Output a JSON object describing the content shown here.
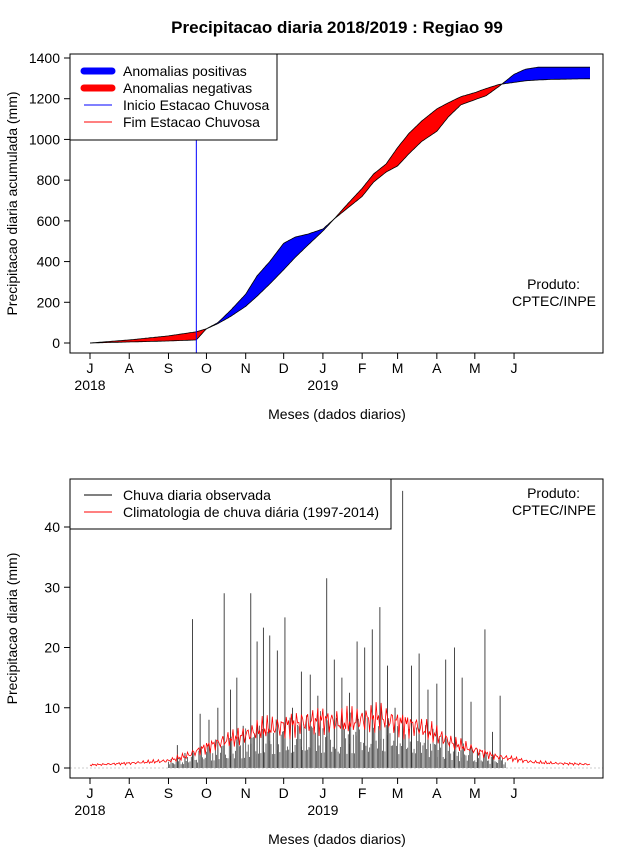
{
  "title": "Precipitacao diaria 2018/2019 : Regiao 99",
  "product_label": [
    "Produto:",
    "CPTEC/INPE"
  ],
  "month_ticks": [
    "J",
    "A",
    "S",
    "O",
    "N",
    "D",
    "J",
    "F",
    "M",
    "A",
    "M",
    "J"
  ],
  "year_labels": [
    "2018",
    "2019"
  ],
  "colors": {
    "positive": "#0000ff",
    "negative": "#ff0000",
    "onset": "#0000ff",
    "end": "#ff0000",
    "observed": "#000000",
    "climatology": "#ff0000"
  },
  "chart_data": [
    {
      "type": "area",
      "title": "Precipitacao diaria 2018/2019 : Regiao 99",
      "xlabel": "Meses (dados diarios)",
      "ylabel": "Precipitacao diaria acumulada (mm)",
      "ylim": [
        0,
        1400
      ],
      "yticks": [
        0,
        200,
        400,
        600,
        800,
        1000,
        1200,
        1400
      ],
      "x_range": [
        "2018-07-01",
        "2019-07-31"
      ],
      "legend_position": "top-left",
      "legend": [
        "Anomalias positivas",
        "Anomalias negativas",
        "Inicio Estacao Chuvosa",
        "Fim Estacao Chuvosa"
      ],
      "onset_date": "2018-09-23",
      "observed_accumulated": {
        "dates": [
          "2018-07-01",
          "2018-08-01",
          "2018-09-01",
          "2018-09-23",
          "2018-10-01",
          "2018-10-10",
          "2018-10-20",
          "2018-11-01",
          "2018-11-10",
          "2018-11-20",
          "2018-12-01",
          "2018-12-10",
          "2018-12-20",
          "2019-01-01",
          "2019-01-10",
          "2019-01-20",
          "2019-02-01",
          "2019-02-10",
          "2019-02-20",
          "2019-03-01",
          "2019-03-10",
          "2019-03-20",
          "2019-04-01",
          "2019-04-10",
          "2019-04-20",
          "2019-05-01",
          "2019-05-10",
          "2019-05-20",
          "2019-06-01",
          "2019-06-10",
          "2019-06-20",
          "2019-07-01",
          "2019-07-31"
        ],
        "values": [
          0,
          5,
          10,
          15,
          70,
          100,
          160,
          240,
          330,
          400,
          490,
          520,
          535,
          560,
          610,
          660,
          720,
          790,
          840,
          870,
          930,
          990,
          1040,
          1110,
          1170,
          1195,
          1215,
          1260,
          1320,
          1345,
          1355,
          1355,
          1355
        ]
      },
      "climatology_accumulated": {
        "dates": [
          "2018-07-01",
          "2018-08-01",
          "2018-09-01",
          "2018-09-23",
          "2018-10-01",
          "2018-10-10",
          "2018-10-20",
          "2018-11-01",
          "2018-11-10",
          "2018-11-20",
          "2018-12-01",
          "2018-12-10",
          "2018-12-20",
          "2019-01-01",
          "2019-01-10",
          "2019-01-20",
          "2019-02-01",
          "2019-02-10",
          "2019-02-20",
          "2019-03-01",
          "2019-03-10",
          "2019-03-20",
          "2019-04-01",
          "2019-04-10",
          "2019-04-20",
          "2019-05-01",
          "2019-05-10",
          "2019-05-20",
          "2019-06-01",
          "2019-06-10",
          "2019-06-20",
          "2019-07-01",
          "2019-07-31"
        ],
        "values": [
          0,
          15,
          35,
          55,
          70,
          95,
          130,
          180,
          230,
          290,
          360,
          420,
          480,
          550,
          610,
          680,
          760,
          830,
          880,
          960,
          1030,
          1090,
          1150,
          1180,
          1210,
          1230,
          1250,
          1270,
          1280,
          1288,
          1292,
          1295,
          1298
        ]
      }
    },
    {
      "type": "line",
      "xlabel": "Meses (dados diarios)",
      "ylabel": "Precipitacao diaria (mm)",
      "ylim": [
        0,
        47
      ],
      "yticks": [
        0,
        10,
        20,
        30,
        40
      ],
      "x_range": [
        "2018-07-01",
        "2019-07-31"
      ],
      "legend_position": "top-left",
      "series": [
        {
          "name": "Chuva diaria observada",
          "style": "vertical bars",
          "dates": [
            "2018-09-08",
            "2018-09-14",
            "2018-09-20",
            "2018-09-26",
            "2018-10-03",
            "2018-10-10",
            "2018-10-15",
            "2018-10-20",
            "2018-10-25",
            "2018-10-30",
            "2018-11-05",
            "2018-11-10",
            "2018-11-15",
            "2018-11-20",
            "2018-11-26",
            "2018-12-02",
            "2018-12-08",
            "2018-12-15",
            "2018-12-22",
            "2018-12-28",
            "2019-01-04",
            "2019-01-10",
            "2019-01-16",
            "2019-01-22",
            "2019-01-28",
            "2019-02-03",
            "2019-02-09",
            "2019-02-15",
            "2019-02-21",
            "2019-02-27",
            "2019-03-05",
            "2019-03-12",
            "2019-03-18",
            "2019-03-25",
            "2019-04-01",
            "2019-04-08",
            "2019-04-15",
            "2019-04-21",
            "2019-04-28",
            "2019-05-03",
            "2019-05-09",
            "2019-05-15",
            "2019-05-21"
          ],
          "values": [
            3.8,
            2.5,
            24.7,
            9,
            8,
            10,
            29,
            13,
            15,
            7,
            29,
            21,
            23.3,
            22,
            19.5,
            25,
            10,
            16,
            15.5,
            12,
            31.5,
            18,
            15,
            12.5,
            21,
            20,
            23,
            26.7,
            17,
            10,
            46,
            17,
            19,
            13,
            14,
            18,
            20,
            15,
            11,
            3,
            23,
            6,
            12
          ]
        },
        {
          "name": "Climatologia de chuva diária (1997-2014)",
          "style": "line",
          "dates": [
            "2018-07-01",
            "2018-08-01",
            "2018-09-01",
            "2018-09-15",
            "2018-10-01",
            "2018-10-15",
            "2018-11-01",
            "2018-11-15",
            "2018-12-01",
            "2018-12-15",
            "2019-01-01",
            "2019-01-15",
            "2019-02-01",
            "2019-02-15",
            "2019-03-01",
            "2019-03-15",
            "2019-04-01",
            "2019-04-15",
            "2019-05-01",
            "2019-05-15",
            "2019-06-01",
            "2019-06-15",
            "2019-07-01",
            "2019-07-31"
          ],
          "values": [
            0.5,
            0.8,
            1.2,
            2,
            3.5,
            4.5,
            5.5,
            6.5,
            7,
            7.5,
            8,
            7.5,
            8,
            8.5,
            7.5,
            7,
            5.5,
            4,
            3,
            2,
            1.5,
            1,
            0.8,
            0.6
          ]
        }
      ]
    }
  ]
}
